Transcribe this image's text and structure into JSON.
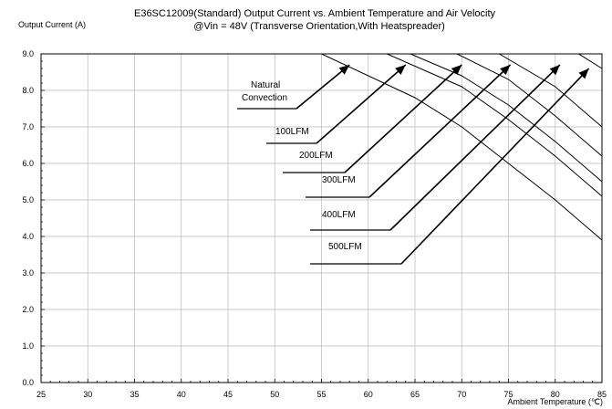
{
  "chart_data": {
    "type": "line",
    "title": "E36SC12009(Standard)  Output Current vs. Ambient Temperature and Air Velocity",
    "subtitle": "@Vin = 48V (Transverse Orientation,With Heatspreader)",
    "ylabel": "Output Current (A)",
    "xlabel": "Ambient Temperature (℃)",
    "xlim": [
      25,
      85
    ],
    "ylim": [
      0,
      9
    ],
    "xticks": [
      "25",
      "30",
      "35",
      "40",
      "45",
      "50",
      "55",
      "60",
      "65",
      "70",
      "75",
      "80",
      "85"
    ],
    "yticks": [
      "0.0",
      "1.0",
      "2.0",
      "3.0",
      "4.0",
      "5.0",
      "6.0",
      "7.0",
      "8.0",
      "9.0"
    ],
    "grid": true,
    "series": [
      {
        "name": "Natural Convection",
        "x": [
          25,
          55.0,
          65.0,
          70.0,
          80.0,
          85.0
        ],
        "y": [
          9.0,
          9.0,
          7.8,
          7.0,
          5.0,
          3.9
        ]
      },
      {
        "name": "100LFM",
        "x": [
          25,
          62.0,
          70.0,
          75.0,
          80.0,
          85.0
        ],
        "y": [
          9.0,
          9.0,
          8.1,
          7.2,
          6.2,
          5.1
        ]
      },
      {
        "name": "200LFM",
        "x": [
          25,
          64.5,
          70.0,
          75.0,
          80.0,
          85.0
        ],
        "y": [
          9.0,
          9.0,
          8.4,
          7.6,
          6.6,
          5.5
        ]
      },
      {
        "name": "300LFM",
        "x": [
          25,
          69.5,
          75.0,
          80.0,
          85.0
        ],
        "y": [
          9.0,
          9.0,
          8.3,
          7.3,
          6.2
        ]
      },
      {
        "name": "400LFM",
        "x": [
          25,
          74.0,
          80.0,
          85.0
        ],
        "y": [
          9.0,
          9.0,
          8.1,
          7.0
        ]
      },
      {
        "name": "500LFM",
        "x": [
          25,
          82.5,
          85.0
        ],
        "y": [
          9.0,
          9.0,
          8.6
        ]
      }
    ],
    "annotations": [
      {
        "text": "Natural",
        "text2": "Convection",
        "arrow_to": [
          58,
          8.7
        ]
      },
      {
        "text": "100LFM",
        "arrow_to": [
          64,
          8.7
        ]
      },
      {
        "text": "200LFM",
        "arrow_to": [
          70,
          8.7
        ]
      },
      {
        "text": "300LFM",
        "arrow_to": [
          75.2,
          8.7
        ]
      },
      {
        "text": "400LFM",
        "arrow_to": [
          80.5,
          8.7
        ]
      },
      {
        "text": "500LFM",
        "arrow_to": [
          83.6,
          8.6
        ]
      }
    ]
  }
}
